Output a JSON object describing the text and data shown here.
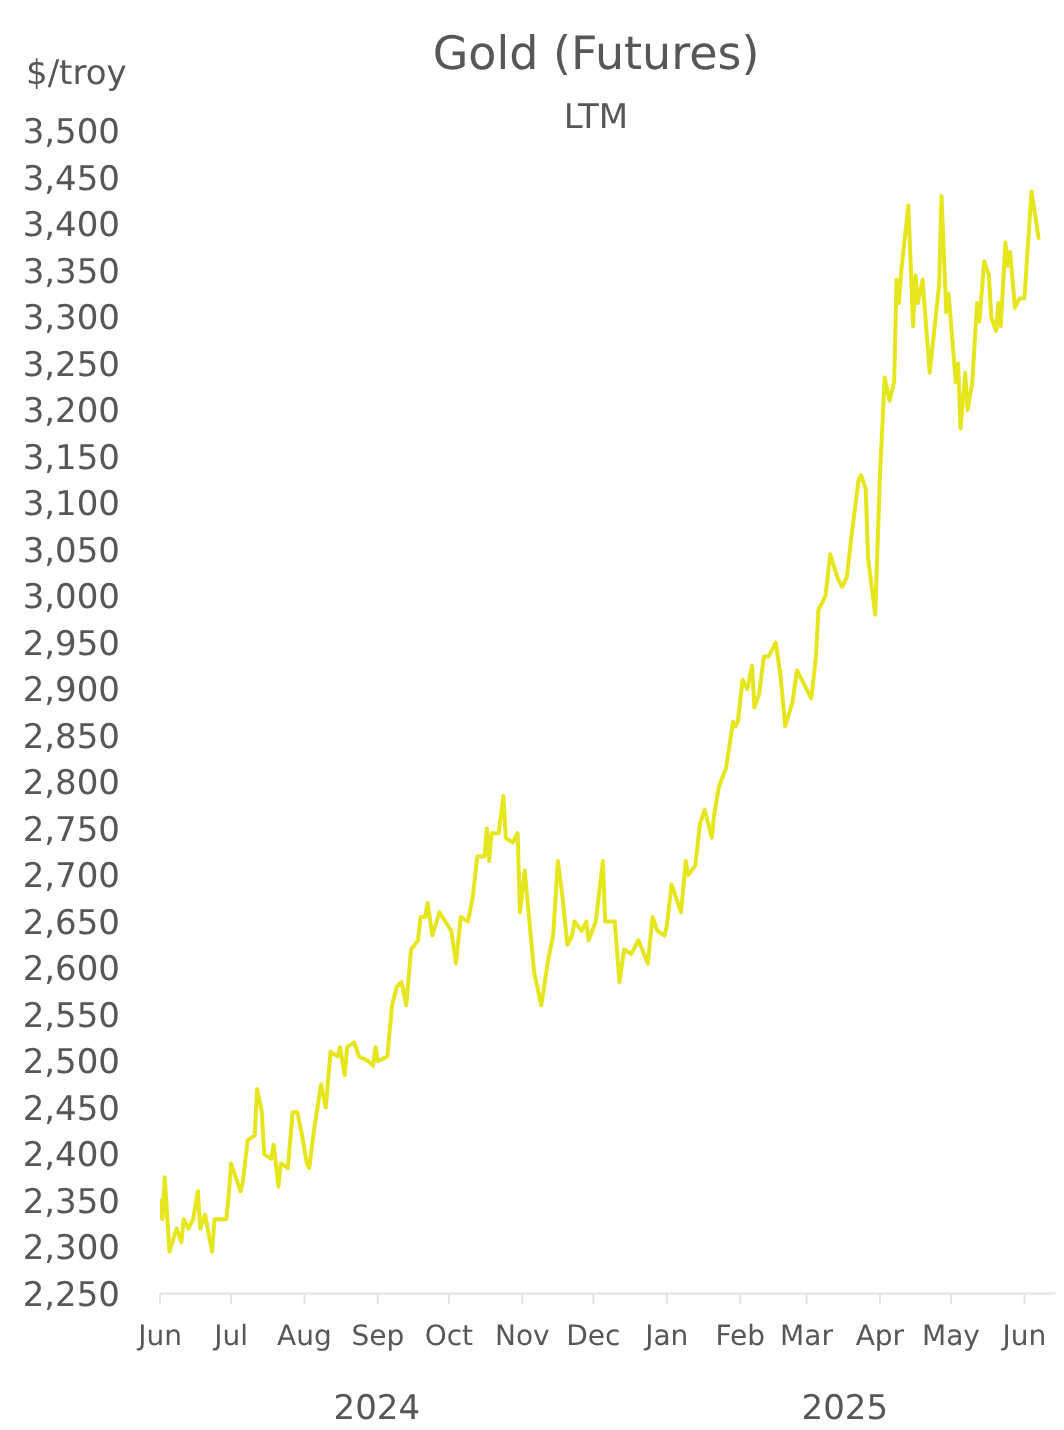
{
  "chart_data": {
    "type": "line",
    "title": "Gold (Futures)",
    "subtitle": "LTM",
    "ylabel": "$/troy",
    "annotations": [
      "2024",
      "2025"
    ],
    "color": "#e6e61e",
    "x": [
      "2024-06-01",
      "2024-06-02",
      "2024-06-03",
      "2024-06-05",
      "2024-06-08",
      "2024-06-10",
      "2024-06-11",
      "2024-06-13",
      "2024-06-15",
      "2024-06-17",
      "2024-06-18",
      "2024-06-20",
      "2024-06-23",
      "2024-06-24",
      "2024-06-26",
      "2024-06-29",
      "2024-06-30",
      "2024-07-01",
      "2024-07-05",
      "2024-07-06",
      "2024-07-08",
      "2024-07-11",
      "2024-07-12",
      "2024-07-14",
      "2024-07-15",
      "2024-07-18",
      "2024-07-19",
      "2024-07-21",
      "2024-07-22",
      "2024-07-25",
      "2024-07-27",
      "2024-07-29",
      "2024-07-31",
      "2024-08-02",
      "2024-08-03",
      "2024-08-05",
      "2024-08-08",
      "2024-08-10",
      "2024-08-12",
      "2024-08-15",
      "2024-08-16",
      "2024-08-18",
      "2024-08-19",
      "2024-08-22",
      "2024-08-24",
      "2024-08-28",
      "2024-08-30",
      "2024-08-31",
      "2024-09-01",
      "2024-09-05",
      "2024-09-07",
      "2024-09-09",
      "2024-09-11",
      "2024-09-13",
      "2024-09-15",
      "2024-09-18",
      "2024-09-19",
      "2024-09-21",
      "2024-09-22",
      "2024-09-24",
      "2024-09-27",
      "2024-10-02",
      "2024-10-04",
      "2024-10-06",
      "2024-10-09",
      "2024-10-11",
      "2024-10-13",
      "2024-10-16",
      "2024-10-17",
      "2024-10-18",
      "2024-10-19",
      "2024-10-22",
      "2024-10-24",
      "2024-10-25",
      "2024-10-28",
      "2024-10-30",
      "2024-10-31",
      "2024-11-02",
      "2024-11-04",
      "2024-11-06",
      "2024-11-09",
      "2024-11-12",
      "2024-11-14",
      "2024-11-16",
      "2024-11-18",
      "2024-11-20",
      "2024-11-22",
      "2024-11-23",
      "2024-11-26",
      "2024-11-28",
      "2024-11-29",
      "2024-12-02",
      "2024-12-05",
      "2024-12-06",
      "2024-12-10",
      "2024-12-12",
      "2024-12-14",
      "2024-12-17",
      "2024-12-20",
      "2024-12-24",
      "2024-12-26",
      "2024-12-28",
      "2024-12-31",
      "2025-01-01",
      "2025-01-03",
      "2025-01-07",
      "2025-01-09",
      "2025-01-10",
      "2025-01-13",
      "2025-01-15",
      "2025-01-17",
      "2025-01-20",
      "2025-01-21",
      "2025-01-23",
      "2025-01-26",
      "2025-01-29",
      "2025-01-30",
      "2025-01-31",
      "2025-02-02",
      "2025-02-04",
      "2025-02-06",
      "2025-02-07",
      "2025-02-09",
      "2025-02-11",
      "2025-02-13",
      "2025-02-14",
      "2025-02-16",
      "2025-02-18",
      "2025-02-20",
      "2025-02-23",
      "2025-02-25",
      "2025-02-28",
      "2025-03-03",
      "2025-03-05",
      "2025-03-06",
      "2025-03-09",
      "2025-03-11",
      "2025-03-14",
      "2025-03-16",
      "2025-03-18",
      "2025-03-20",
      "2025-03-23",
      "2025-03-24",
      "2025-03-26",
      "2025-03-27",
      "2025-03-29",
      "2025-03-30",
      "2025-04-01",
      "2025-04-03",
      "2025-04-05",
      "2025-04-07",
      "2025-04-08",
      "2025-04-09",
      "2025-04-10",
      "2025-04-13",
      "2025-04-15",
      "2025-04-16",
      "2025-04-17",
      "2025-04-19",
      "2025-04-22",
      "2025-04-26",
      "2025-04-27",
      "2025-04-29",
      "2025-04-30",
      "2025-05-03",
      "2025-05-04",
      "2025-05-05",
      "2025-05-07",
      "2025-05-08",
      "2025-05-10",
      "2025-05-12",
      "2025-05-13",
      "2025-05-15",
      "2025-05-17",
      "2025-05-18",
      "2025-05-20",
      "2025-05-21",
      "2025-05-22",
      "2025-05-24",
      "2025-05-25",
      "2025-05-26",
      "2025-05-28",
      "2025-05-30",
      "2025-06-01",
      "2025-06-04",
      "2025-06-07"
    ],
    "values": [
      2350,
      2330,
      2375,
      2295,
      2320,
      2305,
      2330,
      2320,
      2330,
      2360,
      2320,
      2335,
      2295,
      2330,
      2330,
      2330,
      2355,
      2390,
      2360,
      2370,
      2415,
      2420,
      2470,
      2445,
      2400,
      2395,
      2410,
      2365,
      2390,
      2385,
      2445,
      2445,
      2420,
      2390,
      2385,
      2425,
      2475,
      2450,
      2510,
      2505,
      2515,
      2485,
      2515,
      2520,
      2505,
      2500,
      2495,
      2515,
      2500,
      2505,
      2560,
      2580,
      2585,
      2560,
      2620,
      2630,
      2655,
      2655,
      2670,
      2635,
      2660,
      2640,
      2605,
      2655,
      2650,
      2675,
      2720,
      2720,
      2750,
      2715,
      2745,
      2745,
      2785,
      2740,
      2735,
      2745,
      2660,
      2705,
      2650,
      2595,
      2560,
      2610,
      2635,
      2715,
      2675,
      2625,
      2635,
      2650,
      2640,
      2650,
      2630,
      2650,
      2715,
      2650,
      2650,
      2585,
      2620,
      2615,
      2630,
      2605,
      2655,
      2640,
      2635,
      2645,
      2690,
      2660,
      2715,
      2700,
      2710,
      2755,
      2770,
      2740,
      2765,
      2795,
      2815,
      2865,
      2860,
      2865,
      2910,
      2900,
      2925,
      2880,
      2895,
      2935,
      2935,
      2940,
      2950,
      2915,
      2860,
      2885,
      2920,
      2905,
      2890,
      2935,
      2985,
      3000,
      3045,
      3020,
      3010,
      3020,
      3065,
      3125,
      3130,
      3115,
      3040,
      3000,
      2980,
      3130,
      3235,
      3210,
      3230,
      3340,
      3315,
      3350,
      3420,
      3290,
      3345,
      3315,
      3340,
      3240,
      3335,
      3430,
      3305,
      3325,
      3230,
      3250,
      3180,
      3240,
      3200,
      3230,
      3315,
      3295,
      3360,
      3345,
      3300,
      3285,
      3315,
      3290,
      3380,
      3355,
      3370,
      3310,
      3320,
      3320,
      3435,
      3385
    ],
    "xlim": [
      "2024-06-01",
      "2025-06-14"
    ],
    "xticks": [
      {
        "value": "2024-06-01",
        "label": "Jun"
      },
      {
        "value": "2024-07-01",
        "label": "Jul"
      },
      {
        "value": "2024-08-01",
        "label": "Aug"
      },
      {
        "value": "2024-09-01",
        "label": "Sep"
      },
      {
        "value": "2024-10-01",
        "label": "Oct"
      },
      {
        "value": "2024-11-01",
        "label": "Nov"
      },
      {
        "value": "2024-12-01",
        "label": "Dec"
      },
      {
        "value": "2025-01-01",
        "label": "Jan"
      },
      {
        "value": "2025-02-01",
        "label": "Feb"
      },
      {
        "value": "2025-03-01",
        "label": "Mar"
      },
      {
        "value": "2025-04-01",
        "label": "Apr"
      },
      {
        "value": "2025-05-01",
        "label": "May"
      },
      {
        "value": "2025-06-01",
        "label": "Jun"
      }
    ],
    "ylim": [
      2250,
      3500
    ],
    "yticks": [
      {
        "value": 2250,
        "label": "2,250"
      },
      {
        "value": 2300,
        "label": "2,300"
      },
      {
        "value": 2350,
        "label": "2,350"
      },
      {
        "value": 2400,
        "label": "2,400"
      },
      {
        "value": 2450,
        "label": "2,450"
      },
      {
        "value": 2500,
        "label": "2,500"
      },
      {
        "value": 2550,
        "label": "2,550"
      },
      {
        "value": 2600,
        "label": "2,600"
      },
      {
        "value": 2650,
        "label": "2,650"
      },
      {
        "value": 2700,
        "label": "2,700"
      },
      {
        "value": 2750,
        "label": "2,750"
      },
      {
        "value": 2800,
        "label": "2,800"
      },
      {
        "value": 2850,
        "label": "2,850"
      },
      {
        "value": 2900,
        "label": "2,900"
      },
      {
        "value": 2950,
        "label": "2,950"
      },
      {
        "value": 3000,
        "label": "3,000"
      },
      {
        "value": 3050,
        "label": "3,050"
      },
      {
        "value": 3100,
        "label": "3,100"
      },
      {
        "value": 3150,
        "label": "3,150"
      },
      {
        "value": 3200,
        "label": "3,200"
      },
      {
        "value": 3250,
        "label": "3,250"
      },
      {
        "value": 3300,
        "label": "3,300"
      },
      {
        "value": 3350,
        "label": "3,350"
      },
      {
        "value": 3400,
        "label": "3,400"
      },
      {
        "value": 3450,
        "label": "3,450"
      },
      {
        "value": 3500,
        "label": "3,500"
      }
    ]
  }
}
